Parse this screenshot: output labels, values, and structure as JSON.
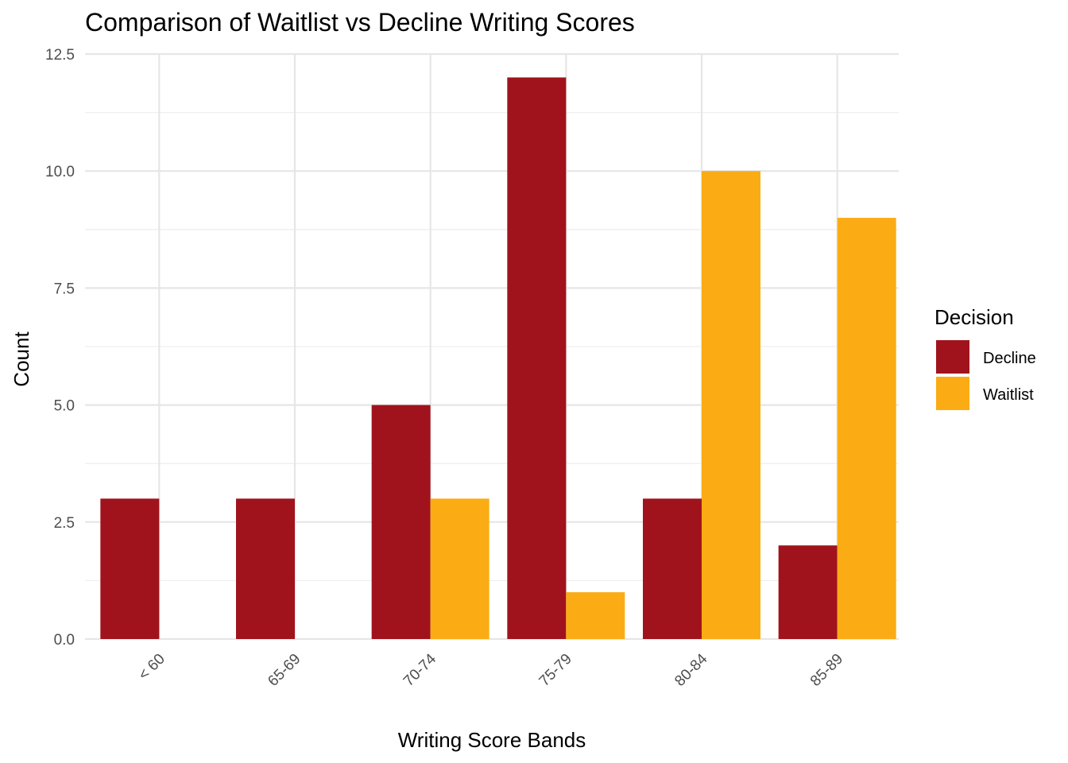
{
  "chart_data": {
    "type": "bar",
    "title": "Comparison of Waitlist vs Decline Writing Scores",
    "xlabel": "Writing Score Bands",
    "ylabel": "Count",
    "categories": [
      "< 60",
      "65-69",
      "70-74",
      "75-79",
      "80-84",
      "85-89"
    ],
    "series": [
      {
        "name": "Decline",
        "color": "#A0131C",
        "values": [
          3,
          3,
          5,
          12,
          3,
          2
        ]
      },
      {
        "name": "Waitlist",
        "color": "#FBAC14",
        "values": [
          0,
          0,
          3,
          1,
          10,
          9
        ]
      }
    ],
    "ylim": [
      0,
      12.5
    ],
    "yticks": [
      0,
      2.5,
      5,
      7.5,
      10,
      12.5
    ],
    "ytick_labels": [
      "0.0",
      "2.5",
      "5.0",
      "7.5",
      "10.0",
      "12.5"
    ],
    "grid": true,
    "x_tick_rotation": -45,
    "legend": {
      "title": "Decision",
      "position": "right",
      "entries": [
        "Decline",
        "Waitlist"
      ]
    }
  }
}
